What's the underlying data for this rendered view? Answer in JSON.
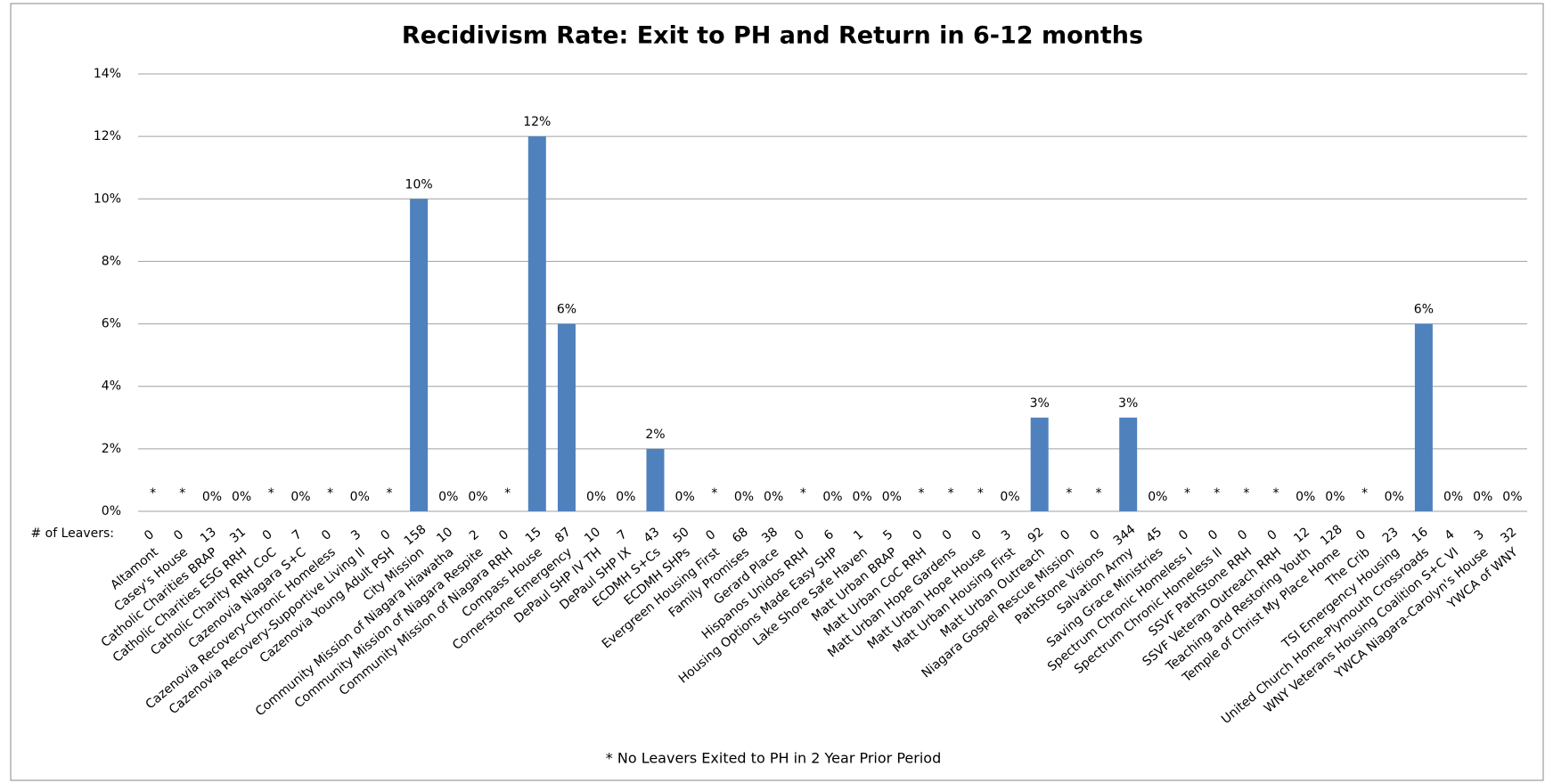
{
  "chart_data": {
    "type": "bar",
    "title": "Recidivism Rate: Exit to PH and Return in 6-12 months",
    "categories": [
      "Altamont",
      "Casey's House",
      "Catholic Charities BRAP",
      "Catholic Charities ESG RRH",
      "Catholic Charity RRH CoC",
      "Cazenovia Niagara S+C",
      "Cazenovia Recovery-Chronic Homeless",
      "Cazenovia Recovery-Supportive Living II",
      "Cazenovia Young Adult PSH",
      "City Mission",
      "Community Mission of Niagara Hiawatha",
      "Community Mission of Niagara Respite",
      "Community Mission of Niagara RRH",
      "Compass House",
      "Cornerstone Emergency",
      "DePaul SHP IV TH",
      "DePaul SHP IX",
      "ECDMH S+Cs",
      "ECDMH SHPs",
      "Evergreen Housing First",
      "Family Promises",
      "Gerard Place",
      "Hispanos Unidos RRH",
      "Housing Options Made Easy SHP",
      "Lake Shore Safe Haven",
      "Matt Urban BRAP",
      "Matt Urban CoC RRH",
      "Matt Urban Hope Gardens",
      "Matt Urban Hope House",
      "Matt Urban Housing First",
      "Matt Urban Outreach",
      "Niagara Gospel Rescue Mission",
      "PathStone Visions",
      "Salvation Army",
      "Saving Grace Ministries",
      "Spectrum Chronic Homeless I",
      "Spectrum Chronic Homeless II",
      "SSVF PathStone RRH",
      "SSVF Veteran Outreach RRH",
      "Teaching and Restoring Youth",
      "Temple of Christ My Place Home",
      "The Crib",
      "TSI Emergency Housing",
      "United Church Home-Plymouth Crossroads",
      "WNY Veterans Housing Coalition S+C VI",
      "YWCA Niagara-Carolyn's House",
      "YWCA of WNY"
    ],
    "values": [
      null,
      null,
      0,
      0,
      null,
      0,
      null,
      0,
      null,
      10,
      0,
      0,
      null,
      12,
      6,
      0,
      0,
      2,
      0,
      null,
      0,
      0,
      null,
      0,
      0,
      0,
      null,
      null,
      null,
      0,
      3,
      null,
      null,
      3,
      0,
      null,
      null,
      null,
      null,
      0,
      0,
      null,
      0,
      6,
      0,
      0,
      0
    ],
    "value_labels": [
      "*",
      "*",
      "0%",
      "0%",
      "*",
      "0%",
      "*",
      "0%",
      "*",
      "10%",
      "0%",
      "0%",
      "*",
      "12%",
      "6%",
      "0%",
      "0%",
      "2%",
      "0%",
      "*",
      "0%",
      "0%",
      "*",
      "0%",
      "0%",
      "0%",
      "*",
      "*",
      "*",
      "0%",
      "3%",
      "*",
      "*",
      "3%",
      "0%",
      "*",
      "*",
      "*",
      "*",
      "0%",
      "0%",
      "*",
      "0%",
      "6%",
      "0%",
      "0%",
      "0%"
    ],
    "leavers_label": "# of Leavers:",
    "leavers": [
      0,
      0,
      13,
      31,
      0,
      7,
      0,
      3,
      0,
      158,
      10,
      2,
      0,
      15,
      87,
      10,
      7,
      43,
      50,
      0,
      68,
      38,
      0,
      6,
      1,
      5,
      0,
      0,
      0,
      3,
      92,
      0,
      0,
      344,
      45,
      0,
      0,
      0,
      0,
      12,
      128,
      0,
      23,
      16,
      4,
      3,
      32
    ],
    "color": "#4f81bd",
    "ylim": [
      0,
      14
    ],
    "yticks": [
      {
        "value": 0,
        "label": "0%"
      },
      {
        "value": 2,
        "label": "2%"
      },
      {
        "value": 4,
        "label": "4%"
      },
      {
        "value": 6,
        "label": "6%"
      },
      {
        "value": 8,
        "label": "8%"
      },
      {
        "value": 10,
        "label": "10%"
      },
      {
        "value": 12,
        "label": "12%"
      },
      {
        "value": 14,
        "label": "14%"
      }
    ],
    "grid": true,
    "footnote": "* No Leavers Exited to PH in 2 Year Prior Period"
  }
}
